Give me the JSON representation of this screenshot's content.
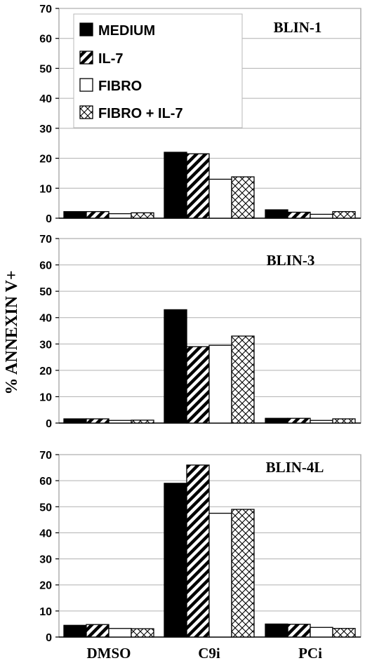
{
  "chart_data": {
    "type": "bar",
    "ylabel": "% ANNEXIN V+",
    "categories": [
      "DMSO",
      "C9i",
      "PCi"
    ],
    "ylim": [
      0,
      70
    ],
    "yticks": [
      0,
      10,
      20,
      30,
      40,
      50,
      60,
      70
    ],
    "legend": {
      "placement": "top-left of top panel",
      "entries": [
        "MEDIUM",
        "IL-7",
        "FIBRO",
        "FIBRO + IL-7"
      ]
    },
    "series_styles": [
      {
        "name": "MEDIUM",
        "fill": "#000000",
        "pattern": "solid"
      },
      {
        "name": "IL-7",
        "fill": "#ffffff",
        "pattern": "diagonal-stripes"
      },
      {
        "name": "FIBRO",
        "fill": "#ffffff",
        "pattern": "none"
      },
      {
        "name": "FIBRO + IL-7",
        "fill": "#ffffff",
        "pattern": "crosshatch"
      }
    ],
    "panels": [
      {
        "title": "BLIN-1",
        "series": [
          {
            "name": "MEDIUM",
            "values": [
              2.2,
              22,
              2.8
            ]
          },
          {
            "name": "IL-7",
            "values": [
              2.2,
              21.5,
              2.0
            ]
          },
          {
            "name": "FIBRO",
            "values": [
              1.5,
              13,
              1.3
            ]
          },
          {
            "name": "FIBRO + IL-7",
            "values": [
              1.8,
              13.8,
              2.2
            ]
          }
        ]
      },
      {
        "title": "BLIN-3",
        "series": [
          {
            "name": "MEDIUM",
            "values": [
              1.6,
              43,
              1.8
            ]
          },
          {
            "name": "IL-7",
            "values": [
              1.6,
              29,
              1.8
            ]
          },
          {
            "name": "FIBRO",
            "values": [
              1.0,
              29.5,
              1.0
            ]
          },
          {
            "name": "FIBRO + IL-7",
            "values": [
              1.1,
              33,
              1.6
            ]
          }
        ]
      },
      {
        "title": "BLIN-4L",
        "series": [
          {
            "name": "MEDIUM",
            "values": [
              4.5,
              59,
              5.0
            ]
          },
          {
            "name": "IL-7",
            "values": [
              4.8,
              66,
              4.9
            ]
          },
          {
            "name": "FIBRO",
            "values": [
              3.3,
              47.5,
              3.7
            ]
          },
          {
            "name": "FIBRO + IL-7",
            "values": [
              3.2,
              49,
              3.3
            ]
          }
        ]
      }
    ]
  }
}
